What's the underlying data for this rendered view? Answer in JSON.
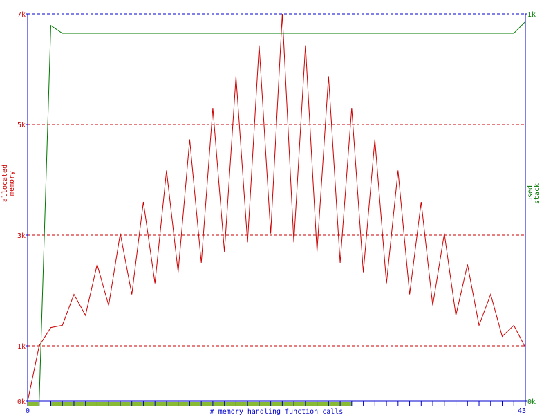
{
  "chart_data": {
    "type": "line",
    "title": "",
    "xlabel": "# memory handling function calls",
    "xlim": [
      0,
      43
    ],
    "x_tick_labels": [
      "0",
      "43"
    ],
    "grid": "horizontal dashed at left-axis ticks",
    "left_axis": {
      "label_lines": [
        "allocated",
        "memory"
      ],
      "ylim": [
        0,
        7
      ],
      "unit": "k",
      "tick_values": [
        0,
        1,
        3,
        5,
        7
      ],
      "tick_labels": [
        "0k",
        "1k",
        "3k",
        "5k",
        "7k"
      ],
      "color": "#cc0000"
    },
    "right_axis": {
      "label_lines": [
        "used",
        "stack"
      ],
      "ylim": [
        0,
        1
      ],
      "unit": "k",
      "tick_values": [
        0,
        1
      ],
      "tick_labels": [
        "0k",
        "1k"
      ],
      "color": "#007700"
    },
    "series": [
      {
        "name": "allocated memory",
        "axis": "left",
        "color": "#cc0000",
        "x": [
          0,
          1,
          2,
          3,
          4,
          5,
          6,
          7,
          8,
          9,
          10,
          11,
          12,
          13,
          14,
          15,
          16,
          17,
          18,
          19,
          20,
          21,
          22,
          23,
          24,
          25,
          26,
          27,
          28,
          29,
          30,
          31,
          32,
          33,
          34,
          35,
          36,
          37,
          38,
          39,
          40,
          41,
          42,
          43
        ],
        "y": [
          0,
          1.0,
          1.33,
          1.37,
          1.93,
          1.55,
          2.47,
          1.73,
          3.03,
          1.93,
          3.6,
          2.13,
          4.17,
          2.33,
          4.73,
          2.5,
          5.3,
          2.7,
          5.87,
          2.87,
          6.43,
          3.03,
          7.0,
          2.87,
          6.43,
          2.7,
          5.87,
          2.5,
          5.3,
          2.33,
          4.73,
          2.13,
          4.17,
          1.93,
          3.6,
          1.73,
          3.03,
          1.55,
          2.47,
          1.37,
          1.93,
          1.17,
          1.37,
          0.97
        ]
      },
      {
        "name": "used stack",
        "axis": "right",
        "color": "#007700",
        "x": [
          0,
          1,
          2,
          3,
          4,
          42,
          43
        ],
        "y": [
          0,
          0,
          0.97,
          0.95,
          0.95,
          0.95,
          0.98
        ]
      }
    ],
    "event_bar": {
      "color": "#88bb33",
      "ranges": [
        [
          0,
          1
        ],
        [
          2,
          28
        ]
      ]
    }
  }
}
